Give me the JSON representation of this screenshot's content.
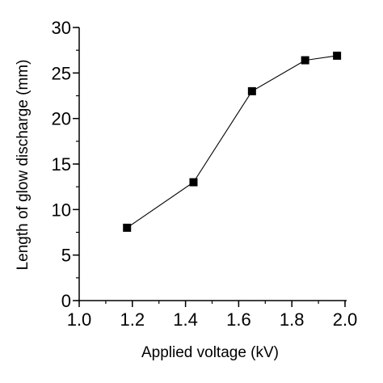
{
  "chart_data": {
    "type": "line",
    "xlabel": "Applied voltage (kV)",
    "ylabel": "Length of glow discharge (mm)",
    "xlim": [
      1.0,
      2.0
    ],
    "ylim": [
      0,
      30
    ],
    "x_ticks": [
      1.0,
      1.2,
      1.4,
      1.6,
      1.8,
      2.0
    ],
    "x_tick_labels": [
      "1.0",
      "1.2",
      "1.4",
      "1.6",
      "1.8",
      "2.0"
    ],
    "x_minor_step": 0.1,
    "y_ticks": [
      0,
      5,
      10,
      15,
      20,
      25,
      30
    ],
    "y_tick_labels": [
      "0",
      "5",
      "10",
      "15",
      "20",
      "25",
      "30"
    ],
    "y_minor_step": 2.5,
    "grid": false,
    "series": [
      {
        "x": [
          1.18,
          1.43,
          1.65,
          1.85,
          1.97
        ],
        "y": [
          8.0,
          13.0,
          23.0,
          26.4,
          26.9
        ],
        "marker": "square",
        "color": "#000000"
      }
    ]
  }
}
